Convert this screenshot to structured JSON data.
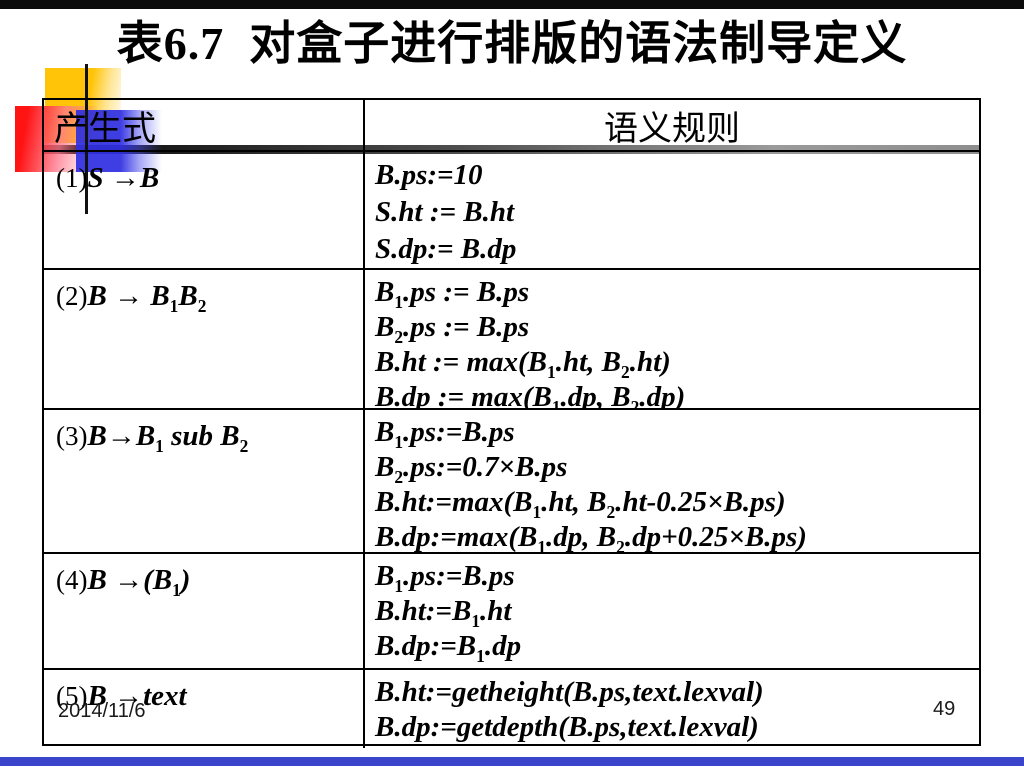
{
  "page": {
    "title": "表6.7  对盒子进行排版的语法制导定义",
    "date": "2014/11/6",
    "page_number": "49"
  },
  "table": {
    "headers": {
      "production": "产生式",
      "rules": "语义规则"
    },
    "rows": [
      {
        "num": "(1)",
        "production": "S →B",
        "rules": [
          "B.ps:=10",
          "S.ht := B.ht",
          "S.dp:= B.dp"
        ]
      },
      {
        "num": "(2)",
        "production": "B → B₁B₂",
        "rules": [
          "B₁.ps := B.ps",
          "B₂.ps := B.ps",
          "B.ht := max(B₁.ht, B₂.ht)",
          "B.dp := max(B₁.dp, B₂.dp)"
        ]
      },
      {
        "num": "(3)",
        "production": "B→B₁ sub B₂",
        "rules": [
          "B₁.ps:=B.ps",
          "B₂.ps:=0.7×B.ps",
          "B.ht:=max(B₁.ht, B₂.ht-0.25×B.ps)",
          "B.dp:=max(B₁.dp, B₂.dp+0.25×B.ps)"
        ]
      },
      {
        "num": "(4)",
        "production": "B →(B₁)",
        "rules": [
          "B₁.ps:=B.ps",
          "B.ht:=B₁.ht",
          "B.dp:=B₁.dp"
        ]
      },
      {
        "num": "(5)",
        "production": "B →text",
        "rules": [
          "B.ht:=getheight(B.ps,text.lexval)",
          "B.dp:=getdepth(B.ps,text.lexval)"
        ]
      }
    ]
  },
  "colors": {
    "topbar": "#0b0b0b",
    "bottombar": "#3b45cc",
    "gold": "#ffc408",
    "red1": "#ff1414",
    "blue1": "#3030e2",
    "barstart": "#050505",
    "barend": "#8e8e8e"
  }
}
